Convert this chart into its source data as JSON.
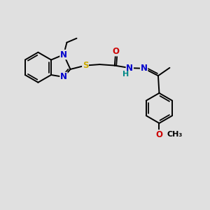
{
  "background_color": "#e0e0e0",
  "fig_width": 3.0,
  "fig_height": 3.0,
  "dpi": 100,
  "atom_colors": {
    "C": "#000000",
    "N": "#0000cc",
    "O": "#cc0000",
    "S": "#ccaa00",
    "H": "#008888"
  },
  "bond_color": "#000000",
  "bond_width": 1.4,
  "font_size": 8.5,
  "xlim": [
    0,
    10
  ],
  "ylim": [
    0,
    10
  ]
}
